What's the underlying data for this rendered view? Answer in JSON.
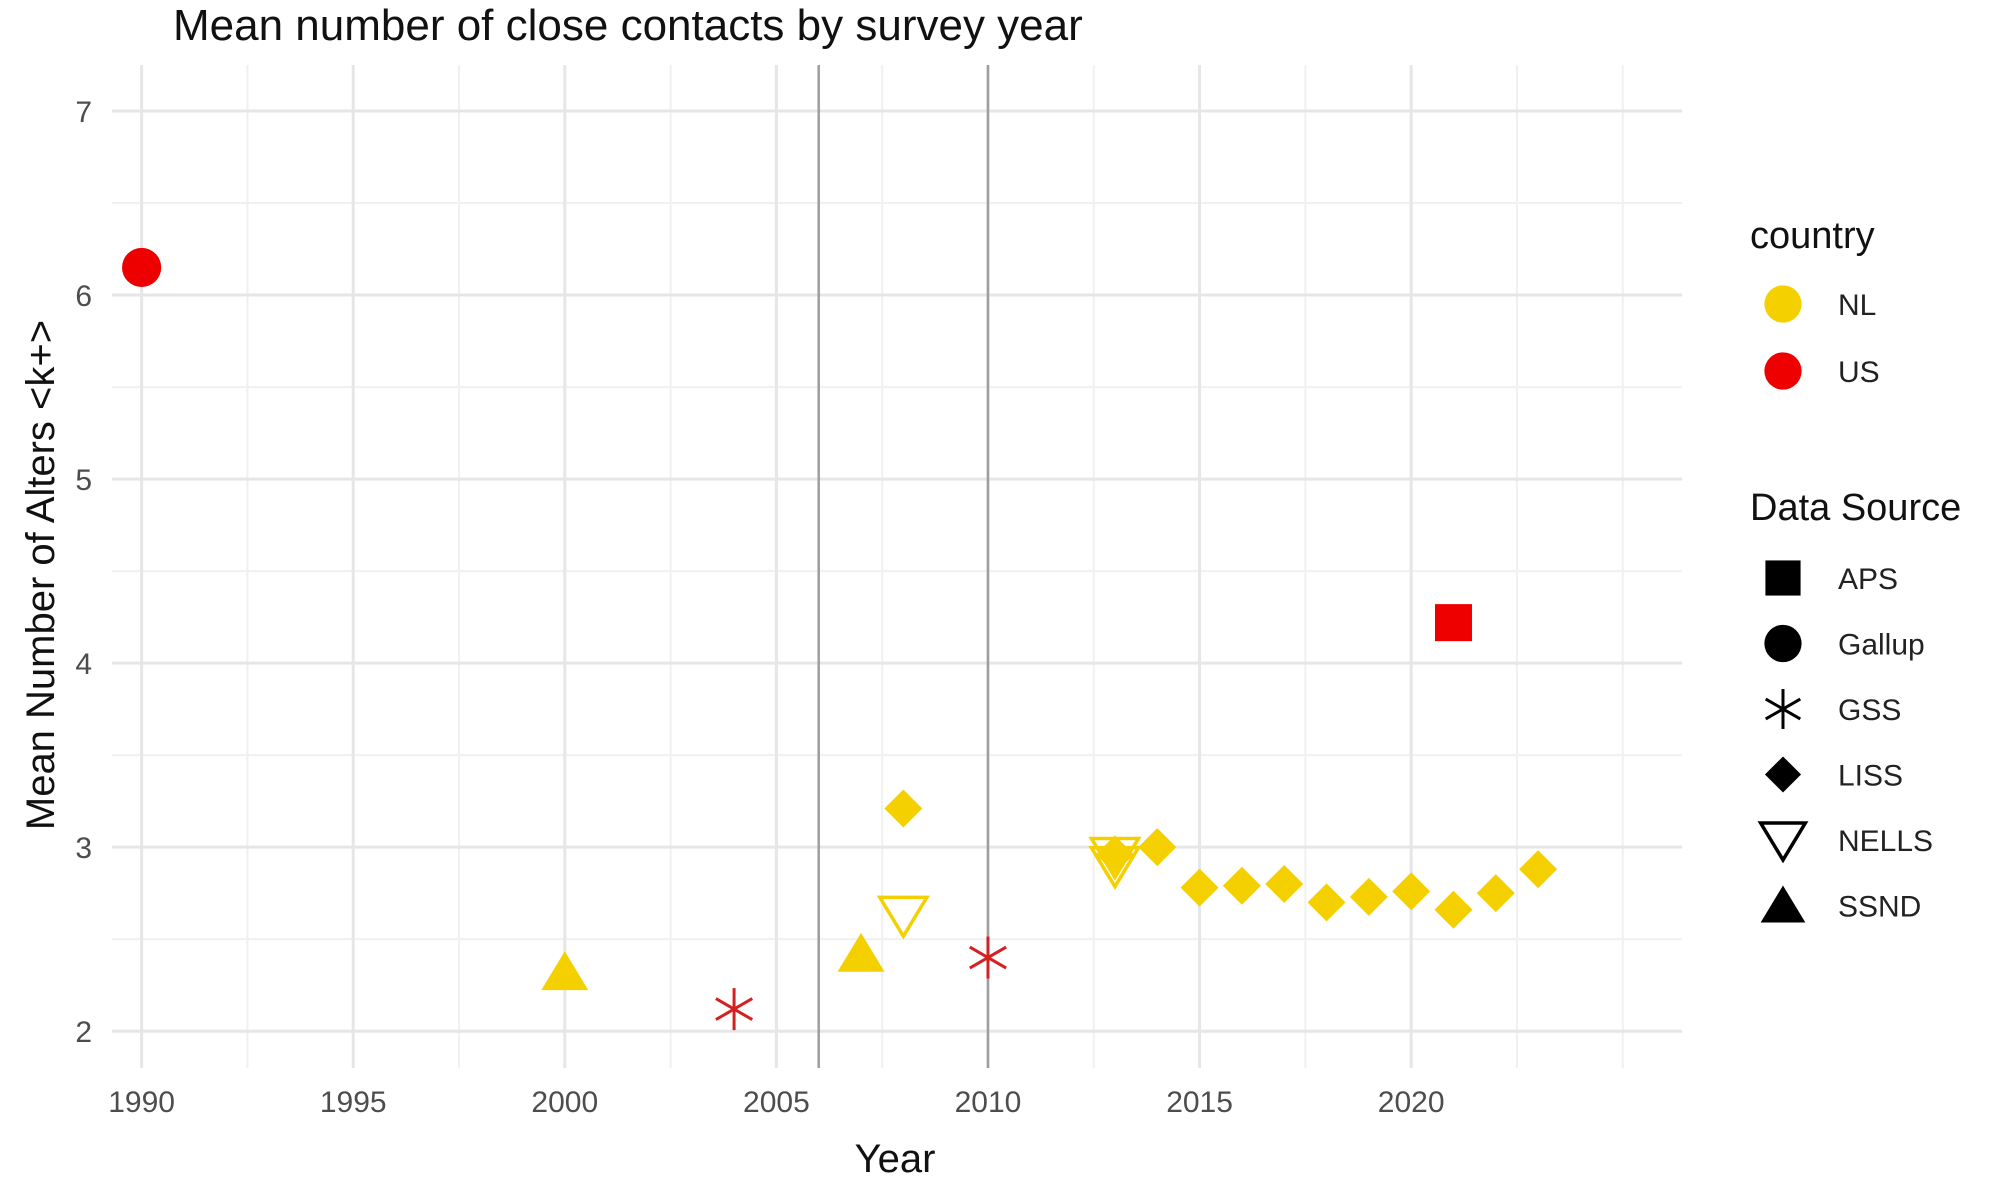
{
  "chart_data": {
    "type": "scatter",
    "title": "Mean number of close contacts by survey year",
    "xlabel": "Year",
    "ylabel": "Mean Number of Alters <k+>",
    "xlim": [
      1989.3,
      2026.4
    ],
    "ylim": [
      1.8,
      7.25
    ],
    "x_ticks": [
      1990,
      1995,
      2000,
      2005,
      2010,
      2015,
      2020
    ],
    "y_ticks": [
      2,
      3,
      4,
      5,
      6,
      7
    ],
    "x_minor_gridlines": [
      1992.5,
      1997.5,
      2002.5,
      2007.5,
      2012.5,
      2017.5,
      2022.5,
      2025
    ],
    "y_minor_gridlines": [
      2.5,
      3.5,
      4.5,
      5.5,
      6.5
    ],
    "vertical_reference_lines": [
      2006,
      2010
    ],
    "grid": true,
    "legend_position": "right",
    "legends": [
      {
        "title": "country",
        "kind": "color",
        "entries": [
          {
            "label": "NL",
            "color": "#F5D000"
          },
          {
            "label": "US",
            "color": "#EE0000"
          }
        ]
      },
      {
        "title": "Data Source",
        "kind": "shape",
        "entries": [
          {
            "label": "APS",
            "shape": "square"
          },
          {
            "label": "Gallup",
            "shape": "circle"
          },
          {
            "label": "GSS",
            "shape": "asterisk"
          },
          {
            "label": "LISS",
            "shape": "diamond"
          },
          {
            "label": "NELLS",
            "shape": "triangle-down-open"
          },
          {
            "label": "SSND",
            "shape": "triangle-up"
          }
        ]
      }
    ],
    "series": [
      {
        "country": "US",
        "source": "Gallup",
        "color": "#EE0000",
        "shape": "circle",
        "points": [
          {
            "x": 1990,
            "y": 6.15
          }
        ]
      },
      {
        "country": "US",
        "source": "APS",
        "color": "#EE0000",
        "shape": "square",
        "points": [
          {
            "x": 2021,
            "y": 4.22
          }
        ]
      },
      {
        "country": "US",
        "source": "GSS",
        "color": "#D42020",
        "shape": "asterisk",
        "points": [
          {
            "x": 2004,
            "y": 2.12
          },
          {
            "x": 2010,
            "y": 2.4
          }
        ]
      },
      {
        "country": "NL",
        "source": "SSND",
        "color": "#F5D000",
        "shape": "triangle-up",
        "points": [
          {
            "x": 2000,
            "y": 2.32
          },
          {
            "x": 2007,
            "y": 2.42
          }
        ]
      },
      {
        "country": "NL",
        "source": "NELLS",
        "color": "#F5D000",
        "shape": "triangle-down-open",
        "points": [
          {
            "x": 2008,
            "y": 2.63
          },
          {
            "x": 2013,
            "y": 2.95
          },
          {
            "x": 2013,
            "y": 2.9
          }
        ]
      },
      {
        "country": "NL",
        "source": "LISS",
        "color": "#F5D000",
        "shape": "diamond",
        "points": [
          {
            "x": 2008,
            "y": 3.21
          },
          {
            "x": 2013,
            "y": 2.96
          },
          {
            "x": 2014,
            "y": 3.0
          },
          {
            "x": 2015,
            "y": 2.78
          },
          {
            "x": 2016,
            "y": 2.79
          },
          {
            "x": 2017,
            "y": 2.8
          },
          {
            "x": 2018,
            "y": 2.7
          },
          {
            "x": 2019,
            "y": 2.73
          },
          {
            "x": 2020,
            "y": 2.76
          },
          {
            "x": 2021,
            "y": 2.66
          },
          {
            "x": 2022,
            "y": 2.75
          },
          {
            "x": 2023,
            "y": 2.88
          }
        ]
      }
    ]
  }
}
